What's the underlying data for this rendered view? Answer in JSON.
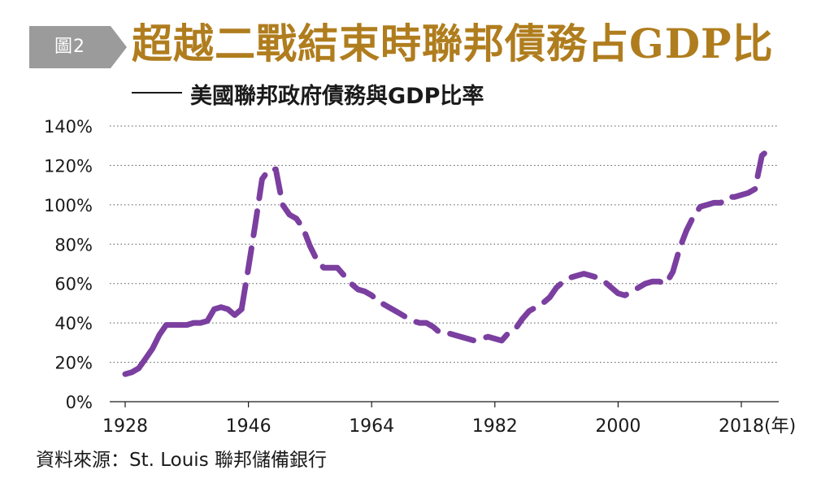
{
  "figure": {
    "badge": "圖2",
    "title": "超越二戰結束時聯邦債務占GDP比",
    "subtitle": "美國聯邦政府債務與GDP比率",
    "source": "資料來源：St. Louis 聯邦儲備銀行"
  },
  "colors": {
    "line": "#7b3fa0",
    "title": "#b07d1e",
    "badge": "#9b9b9b",
    "grid": "#555555"
  },
  "chart_data": {
    "type": "line",
    "title": "美國聯邦政府債務與GDP比率",
    "xlabel": "(年)",
    "ylabel": "",
    "xlim": [
      1927,
      2023
    ],
    "ylim": [
      0,
      140
    ],
    "x_ticks": [
      1928,
      1946,
      1964,
      1982,
      2000,
      2018
    ],
    "x_tick_labels": [
      "1928",
      "1946",
      "1964",
      "1982",
      "2000",
      "2018(年)"
    ],
    "y_ticks": [
      0,
      20,
      40,
      60,
      80,
      100,
      120,
      140
    ],
    "y_tick_labels": [
      "0%",
      "20%",
      "40%",
      "60%",
      "80%",
      "100%",
      "120%",
      "140%"
    ],
    "grid": "horizontal-dotted",
    "series": [
      {
        "style": "solid",
        "points": [
          [
            1928,
            14
          ],
          [
            1929,
            15
          ],
          [
            1930,
            17
          ],
          [
            1931,
            22
          ],
          [
            1932,
            27
          ],
          [
            1933,
            34
          ],
          [
            1934,
            39
          ],
          [
            1935,
            39
          ],
          [
            1936,
            39
          ],
          [
            1937,
            39
          ],
          [
            1938,
            40
          ],
          [
            1939,
            40
          ],
          [
            1940,
            41
          ],
          [
            1941,
            47
          ],
          [
            1942,
            48
          ],
          [
            1943,
            47
          ],
          [
            1944,
            44
          ],
          [
            1945,
            47
          ]
        ]
      },
      {
        "style": "dashed",
        "points": [
          [
            1945,
            47
          ],
          [
            1946,
            68
          ],
          [
            1947,
            90
          ],
          [
            1948,
            113
          ],
          [
            1949,
            118
          ],
          [
            1950,
            118
          ],
          [
            1951,
            100
          ],
          [
            1952,
            95
          ],
          [
            1953,
            93
          ],
          [
            1954,
            88
          ],
          [
            1955,
            79
          ],
          [
            1956,
            72
          ],
          [
            1957,
            68
          ],
          [
            1958,
            68
          ],
          [
            1959,
            68
          ],
          [
            1960,
            64
          ],
          [
            1961,
            60
          ],
          [
            1962,
            57
          ],
          [
            1963,
            56
          ],
          [
            1964,
            54
          ],
          [
            1965,
            51
          ],
          [
            1966,
            49
          ],
          [
            1967,
            47
          ],
          [
            1968,
            45
          ],
          [
            1969,
            43
          ],
          [
            1970,
            41
          ],
          [
            1971,
            40
          ],
          [
            1972,
            40
          ],
          [
            1973,
            38
          ],
          [
            1974,
            35
          ],
          [
            1975,
            35
          ],
          [
            1976,
            34
          ],
          [
            1977,
            33
          ],
          [
            1978,
            32
          ],
          [
            1979,
            31
          ],
          [
            1980,
            32
          ],
          [
            1981,
            33
          ],
          [
            1982,
            32
          ],
          [
            1983,
            31
          ],
          [
            1984,
            35
          ],
          [
            1985,
            37
          ],
          [
            1986,
            42
          ],
          [
            1987,
            46
          ],
          [
            1988,
            48
          ],
          [
            1989,
            50
          ],
          [
            1990,
            53
          ],
          [
            1991,
            58
          ],
          [
            1992,
            61
          ],
          [
            1993,
            63
          ],
          [
            1994,
            64
          ],
          [
            1995,
            65
          ],
          [
            1996,
            64
          ],
          [
            1997,
            63
          ],
          [
            1998,
            61
          ],
          [
            1999,
            58
          ],
          [
            2000,
            55
          ],
          [
            2001,
            54
          ],
          [
            2002,
            56
          ],
          [
            2003,
            58
          ],
          [
            2004,
            60
          ],
          [
            2005,
            61
          ],
          [
            2006,
            61
          ],
          [
            2007,
            60
          ],
          [
            2008,
            66
          ],
          [
            2009,
            78
          ],
          [
            2010,
            87
          ],
          [
            2011,
            94
          ],
          [
            2012,
            99
          ],
          [
            2013,
            100
          ],
          [
            2014,
            101
          ],
          [
            2015,
            101
          ],
          [
            2016,
            104
          ],
          [
            2017,
            104
          ],
          [
            2018,
            105
          ],
          [
            2019,
            106
          ],
          [
            2020,
            108
          ],
          [
            2021,
            125
          ],
          [
            2022,
            128
          ]
        ]
      }
    ]
  }
}
